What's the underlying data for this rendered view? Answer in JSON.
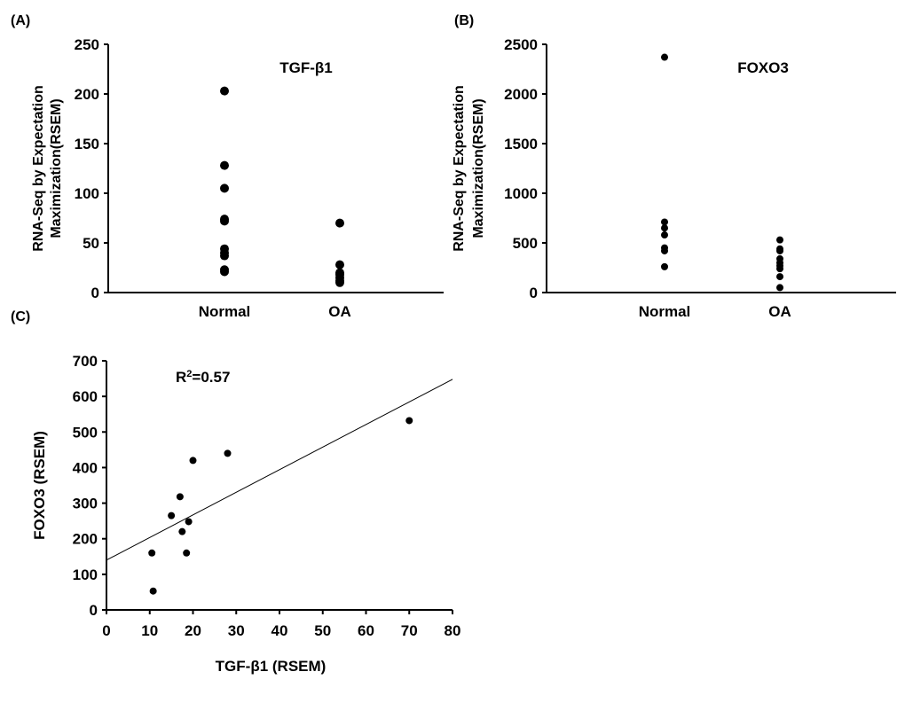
{
  "chart_data": [
    {
      "panel": "(A)",
      "type": "scatter",
      "title": "TGF-β1",
      "ylabel_line1": "RNA-Seq by Expectation",
      "ylabel_line2": "Maximization(RSEM)",
      "categories": [
        "Normal",
        "OA"
      ],
      "ylim": [
        0,
        250
      ],
      "yticks": [
        0,
        50,
        100,
        150,
        200,
        250
      ],
      "series": [
        {
          "name": "Normal",
          "values": [
            203,
            128,
            105,
            74,
            72,
            44,
            40,
            37,
            23,
            21
          ]
        },
        {
          "name": "OA",
          "values": [
            70,
            28,
            20,
            18,
            15,
            12,
            10
          ]
        }
      ]
    },
    {
      "panel": "(B)",
      "type": "scatter",
      "title": "FOXO3",
      "ylabel_line1": "RNA-Seq by Expectation",
      "ylabel_line2": "Maximization(RSEM)",
      "categories": [
        "Normal",
        "OA"
      ],
      "ylim": [
        0,
        2500
      ],
      "yticks": [
        0,
        500,
        1000,
        1500,
        2000,
        2500
      ],
      "series": [
        {
          "name": "Normal",
          "values": [
            2370,
            710,
            650,
            580,
            450,
            420,
            260
          ]
        },
        {
          "name": "OA",
          "values": [
            530,
            440,
            420,
            340,
            300,
            270,
            240,
            160,
            50
          ]
        }
      ]
    },
    {
      "panel": "(C)",
      "type": "scatter",
      "annotation_base": "R",
      "annotation_sup": "2",
      "annotation_rest": "=0.57",
      "xlabel": "TGF-β1 (RSEM)",
      "ylabel": "FOXO3 (RSEM)",
      "xlim": [
        0,
        80
      ],
      "ylim": [
        0,
        700
      ],
      "xticks": [
        0,
        10,
        20,
        30,
        40,
        50,
        60,
        70,
        80
      ],
      "yticks": [
        0,
        100,
        200,
        300,
        400,
        500,
        600,
        700
      ],
      "points": [
        [
          10.5,
          160
        ],
        [
          10.8,
          53
        ],
        [
          15,
          265
        ],
        [
          17,
          318
        ],
        [
          17.5,
          220
        ],
        [
          18.5,
          160
        ],
        [
          19,
          248
        ],
        [
          20,
          420
        ],
        [
          28,
          440
        ],
        [
          70,
          532
        ]
      ],
      "trendline": {
        "intercept": 140,
        "slope": 6.35
      }
    }
  ]
}
